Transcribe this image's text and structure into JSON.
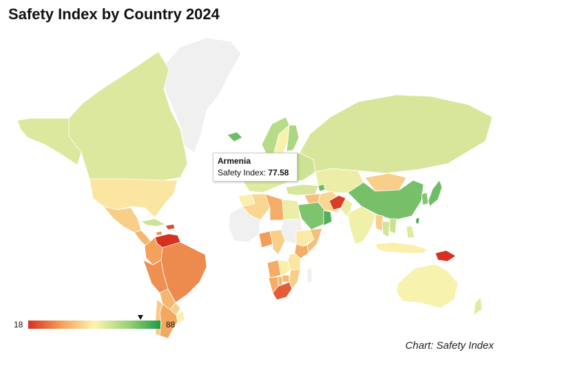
{
  "title": "Safety Index by Country 2024",
  "credit": "Chart: Safety Index",
  "tooltip": {
    "country": "Armenia",
    "label": "Safety Index: ",
    "value": "77.58"
  },
  "legend": {
    "min_label": "18",
    "max_label": "88",
    "min": 18,
    "max": 88,
    "marker_value": 77.58,
    "colors": [
      "#d7301f",
      "#f3a05a",
      "#fcf4b0",
      "#9fd27a",
      "#1f9a45"
    ]
  },
  "colors": {
    "no_data": "#f0f0f0",
    "border": "#ffffff"
  },
  "chart_data": {
    "type": "choropleth",
    "title": "Safety Index by Country 2024",
    "value_range": [
      18,
      88
    ],
    "highlighted": {
      "country": "Armenia",
      "value": 77.58
    },
    "regions": [
      {
        "name": "Greenland",
        "value": null
      },
      {
        "name": "Canada",
        "value": 59
      },
      {
        "name": "United States",
        "value": 50
      },
      {
        "name": "Mexico",
        "value": 45
      },
      {
        "name": "Central America",
        "value": 40
      },
      {
        "name": "Cuba",
        "value": 62
      },
      {
        "name": "Jamaica",
        "value": 33
      },
      {
        "name": "Haiti",
        "value": 22
      },
      {
        "name": "Venezuela",
        "value": 18
      },
      {
        "name": "Colombia",
        "value": 36
      },
      {
        "name": "Peru",
        "value": 33
      },
      {
        "name": "Brazil",
        "value": 32
      },
      {
        "name": "Bolivia",
        "value": 40
      },
      {
        "name": "Paraguay",
        "value": 45
      },
      {
        "name": "Argentina",
        "value": 37
      },
      {
        "name": "Chile",
        "value": 44
      },
      {
        "name": "Uruguay",
        "value": 52
      },
      {
        "name": "Iceland",
        "value": 77
      },
      {
        "name": "Norway",
        "value": 66
      },
      {
        "name": "Sweden",
        "value": 54
      },
      {
        "name": "Finland",
        "value": 68
      },
      {
        "name": "Western Europe",
        "value": 58
      },
      {
        "name": "Eastern Europe",
        "value": 62
      },
      {
        "name": "Russia",
        "value": 60
      },
      {
        "name": "Kazakhstan",
        "value": 56
      },
      {
        "name": "Mongolia",
        "value": 45
      },
      {
        "name": "China",
        "value": 76
      },
      {
        "name": "Korea",
        "value": 74
      },
      {
        "name": "Japan",
        "value": 77
      },
      {
        "name": "Turkey",
        "value": 60
      },
      {
        "name": "Armenia",
        "value": 77.58
      },
      {
        "name": "Iran",
        "value": 47
      },
      {
        "name": "Iraq",
        "value": 42
      },
      {
        "name": "Saudi Arabia",
        "value": 75
      },
      {
        "name": "Oman",
        "value": 81
      },
      {
        "name": "Afghanistan",
        "value": 20
      },
      {
        "name": "Pakistan",
        "value": 56
      },
      {
        "name": "India",
        "value": 55
      },
      {
        "name": "Myanmar",
        "value": 45
      },
      {
        "name": "Thailand",
        "value": 61
      },
      {
        "name": "Vietnam",
        "value": 63
      },
      {
        "name": "Taiwan",
        "value": 83
      },
      {
        "name": "Indonesia",
        "value": 52
      },
      {
        "name": "Philippines",
        "value": 58
      },
      {
        "name": "Papua New Guinea",
        "value": 18
      },
      {
        "name": "Australia",
        "value": 54
      },
      {
        "name": "New Zealand",
        "value": 58
      },
      {
        "name": "Morocco",
        "value": 52
      },
      {
        "name": "Algeria",
        "value": 47
      },
      {
        "name": "Libya",
        "value": 38
      },
      {
        "name": "Egypt",
        "value": 56
      },
      {
        "name": "Sudan",
        "value": null
      },
      {
        "name": "Ethiopia",
        "value": 51
      },
      {
        "name": "Somalia",
        "value": 42
      },
      {
        "name": "Nigeria",
        "value": 35
      },
      {
        "name": "Cameroon",
        "value": 45
      },
      {
        "name": "Kenya",
        "value": 38
      },
      {
        "name": "Tanzania",
        "value": 50
      },
      {
        "name": "Angola",
        "value": 38
      },
      {
        "name": "Namibia",
        "value": 38
      },
      {
        "name": "Zambia",
        "value": 52
      },
      {
        "name": "Mozambique",
        "value": 45
      },
      {
        "name": "Zimbabwe",
        "value": 41
      },
      {
        "name": "Botswana",
        "value": 40
      },
      {
        "name": "South Africa",
        "value": 25
      },
      {
        "name": "Madagascar",
        "value": null
      },
      {
        "name": "West Africa",
        "value": null
      }
    ]
  }
}
